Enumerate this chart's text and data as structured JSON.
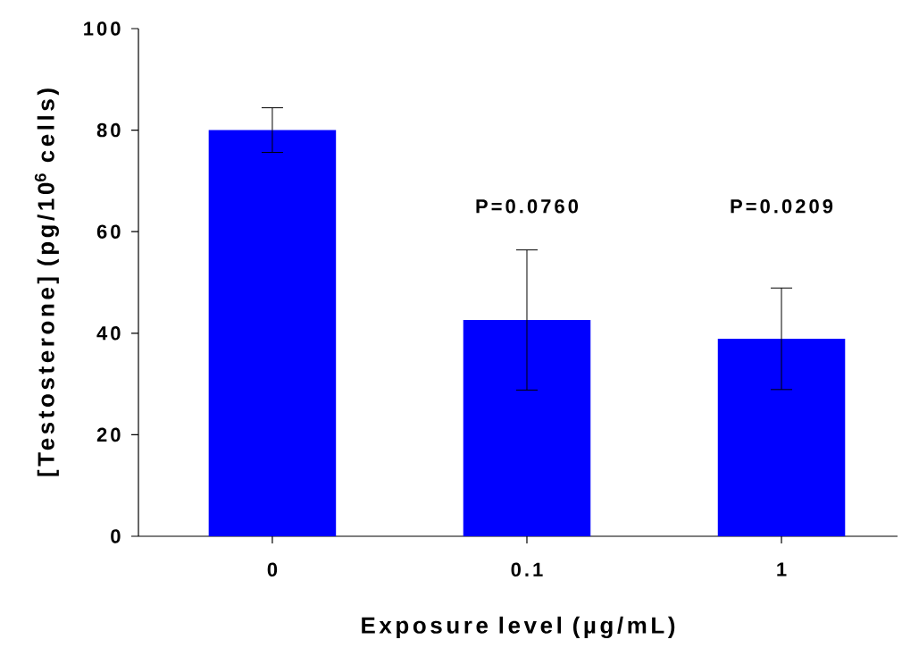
{
  "chart_data": {
    "type": "bar",
    "ylabel": "[Testosterone] (pg/10$^{6}$ cells)",
    "xlabel": "Exposure level (µg/mL)",
    "categories": [
      "0",
      "0.1",
      "1"
    ],
    "values": [
      80,
      42.6,
      38.9
    ],
    "errors": [
      4.4,
      13.8,
      10
    ],
    "color": "#0000ff",
    "ylim": [
      0,
      100
    ],
    "yticks": [
      0,
      20,
      40,
      60,
      80,
      100
    ],
    "annotations": [
      "P=0.0760",
      "P=0.0209"
    ]
  }
}
